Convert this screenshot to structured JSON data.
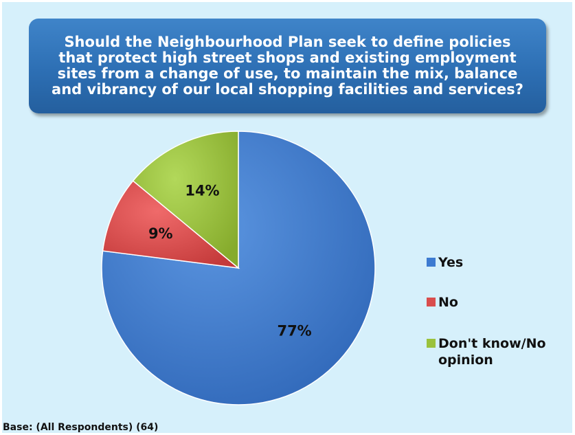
{
  "chart_data": {
    "type": "pie",
    "title": "Should the Neighbourhood Plan seek to define policies that protect high street shops and existing employment sites from a change of use, to maintain the mix, balance and vibrancy of our local shopping facilities and services?",
    "categories": [
      "Yes",
      "No",
      "Don't know/No opinion"
    ],
    "values": [
      77,
      9,
      14
    ],
    "data_labels": [
      "77%",
      "9%",
      "14%"
    ],
    "colors": [
      "#3d7bd1",
      "#d94d4d",
      "#9ac23c"
    ],
    "legend_position": "right",
    "footnote": "Base: (All Respondents) (64)"
  }
}
